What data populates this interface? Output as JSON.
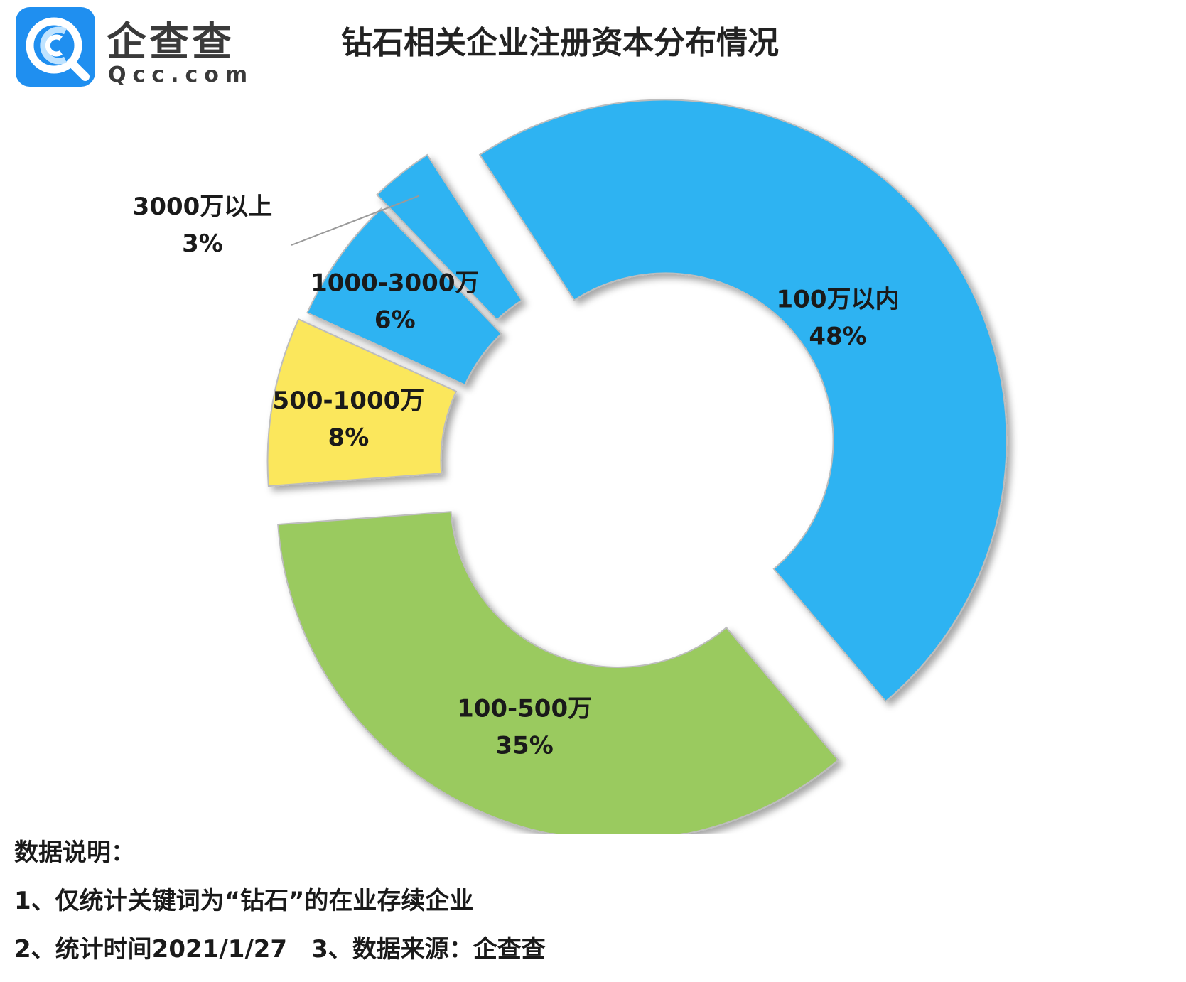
{
  "logo": {
    "name": "企查查",
    "domain": "Qcc.com"
  },
  "title": "钻石相关企业注册资本分布情况",
  "colors": {
    "blue": "#2db3f2",
    "yellow": "#fbe75b",
    "green": "#9aca5e",
    "brand": "#1f8ff0"
  },
  "chart_data": {
    "type": "pie",
    "donut": true,
    "title": "钻石相关企业注册资本分布情况",
    "slices": [
      {
        "label": "100万以内",
        "value": 48,
        "value_label": "48%",
        "color": "#2db3f2"
      },
      {
        "label": "100-500万",
        "value": 35,
        "value_label": "35%",
        "color": "#9aca5e"
      },
      {
        "label": "500-1000万",
        "value": 8,
        "value_label": "8%",
        "color": "#fbe75b"
      },
      {
        "label": "1000-3000万",
        "value": 6,
        "value_label": "6%",
        "color": "#2db3f2"
      },
      {
        "label": "3000万以上",
        "value": 3,
        "value_label": "3%",
        "color": "#2db3f2"
      }
    ]
  },
  "notes": {
    "heading": "数据说明：",
    "line1": "1、仅统计关键词为“钻石”的在业存续企业",
    "line2": "2、统计时间2021/1/27　3、数据来源：企查查"
  }
}
